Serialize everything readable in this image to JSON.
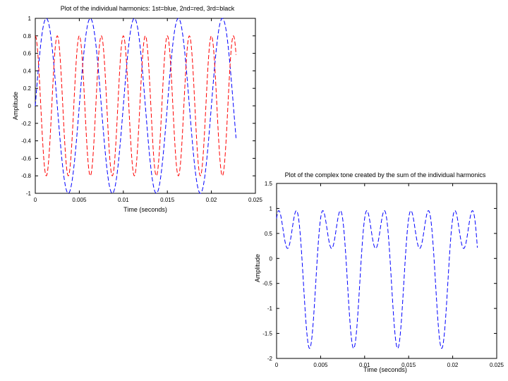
{
  "chart_data": [
    {
      "type": "line",
      "title": "Plot of the individual harmonics: 1st=blue, 2nd=red, 3rd=black",
      "xlabel": "Time (seconds)",
      "ylabel": "Amplitude",
      "xlim": [
        0,
        0.025
      ],
      "ylim": [
        -1,
        1
      ],
      "xticks": [
        0,
        0.005,
        0.01,
        0.015,
        0.02,
        0.025
      ],
      "xtick_labels": [
        "0",
        "0.005",
        "0.01",
        "0.015",
        "0.02",
        "0.025"
      ],
      "yticks": [
        -1,
        -0.8,
        -0.6,
        -0.4,
        -0.2,
        0,
        0.2,
        0.4,
        0.6,
        0.8,
        1
      ],
      "ytick_labels": [
        "-1",
        "-0.8",
        "-0.6",
        "-0.4",
        "-0.2",
        "0",
        "0.2",
        "0.4",
        "0.6",
        "0.8",
        "1"
      ],
      "grid": false,
      "series": [
        {
          "color": "#0000ff",
          "line_style": "dashed",
          "frequency_hz": 200,
          "amplitude": 1,
          "x_range": [
            0,
            0.0228
          ]
        },
        {
          "color": "#ff0000",
          "line_style": "dashed",
          "frequency_hz": 400,
          "amplitude": 0.8,
          "x_range": [
            0,
            0.0228
          ]
        }
      ]
    },
    {
      "type": "line",
      "title": "Plot of the complex tone created by the sum of the individual harmonics",
      "xlabel": "Time (seconds)",
      "ylabel": "Amplitude",
      "xlim": [
        0,
        0.025
      ],
      "ylim": [
        -2,
        1.5
      ],
      "xticks": [
        0,
        0.005,
        0.01,
        0.015,
        0.02,
        0.025
      ],
      "xtick_labels": [
        "0",
        "0.005",
        "0.01",
        "0.015",
        "0.02",
        "0.025"
      ],
      "yticks": [
        -2,
        -1.5,
        -1,
        -0.5,
        0,
        0.5,
        1,
        1.5
      ],
      "ytick_labels": [
        "-2",
        "-1.5",
        "-1",
        "-0.5",
        "0",
        "0.5",
        "1",
        "1.5"
      ],
      "grid": false,
      "series": [
        {
          "color": "#0000ff",
          "line_style": "dashed",
          "components": "200 Hz sine (amp 1) + 400 Hz cosine (amp 0.8)",
          "x_range": [
            0,
            0.0228
          ]
        }
      ]
    }
  ]
}
